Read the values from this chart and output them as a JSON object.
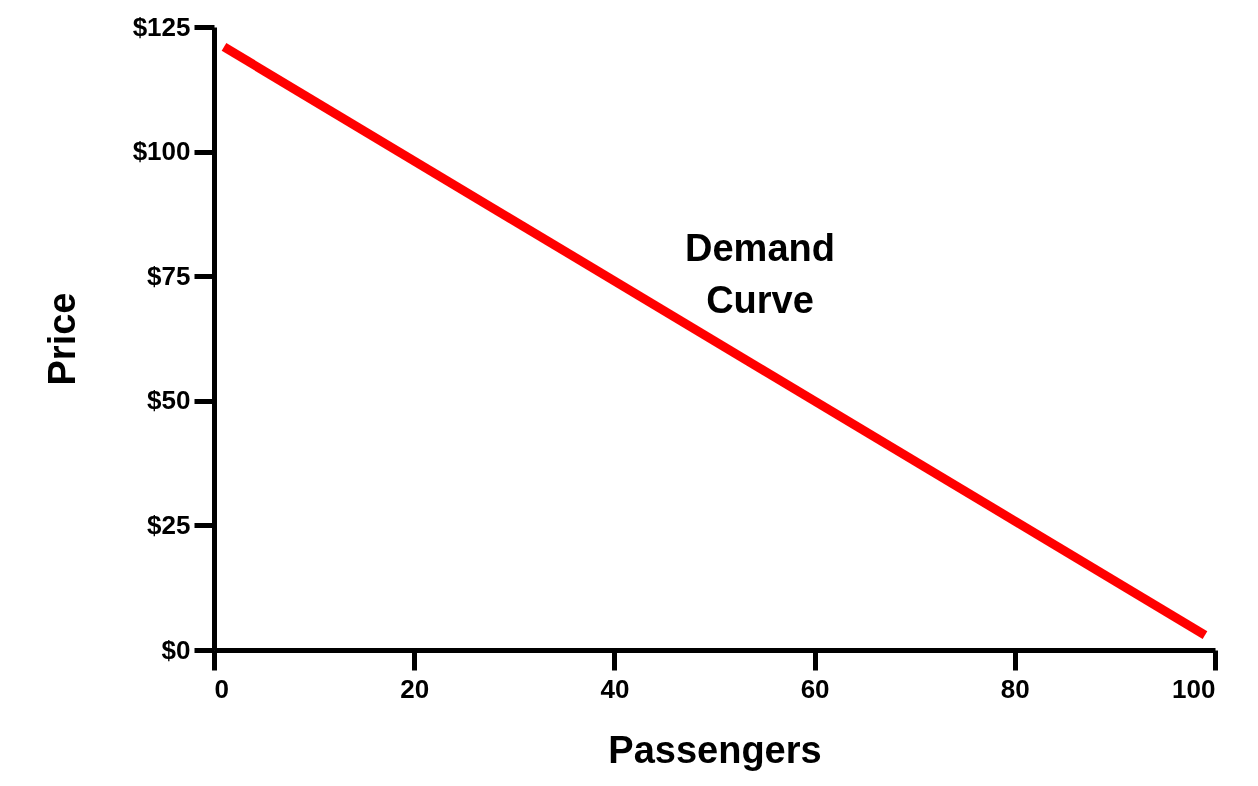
{
  "chart_data": {
    "type": "line",
    "xlabel": "Passengers",
    "ylabel": "Price",
    "x": [
      1,
      99
    ],
    "series": [
      {
        "color": "#ff0000",
        "values": [
          121,
          3
        ]
      }
    ],
    "xlim": [
      0,
      100
    ],
    "ylim": [
      0,
      125
    ],
    "xticks": [
      0,
      20,
      40,
      60,
      80,
      100
    ],
    "yticks": [
      {
        "value": 0,
        "label": "$0"
      },
      {
        "value": 25,
        "label": "$25"
      },
      {
        "value": 50,
        "label": "$50"
      },
      {
        "value": 75,
        "label": "$75"
      },
      {
        "value": 100,
        "label": "$100"
      },
      {
        "value": 125,
        "label": "$125"
      }
    ],
    "annotations": [
      "Demand Curve"
    ],
    "grid": false,
    "marker": "none",
    "line_style": "solid"
  }
}
